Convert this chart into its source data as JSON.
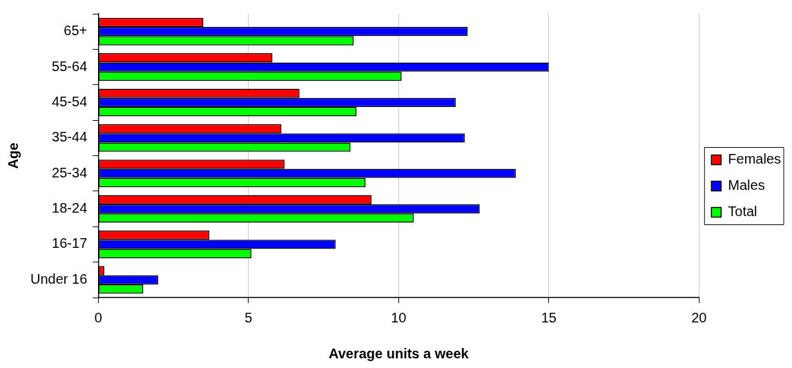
{
  "chart_data": {
    "type": "bar",
    "orientation": "horizontal",
    "xlabel": "Average units a week",
    "ylabel": "Age",
    "categories": [
      "65+",
      "55-64",
      "45-54",
      "35-44",
      "25-34",
      "18-24",
      "16-17",
      "Under 16"
    ],
    "series": [
      {
        "name": "Females",
        "color": "#ff0000",
        "values": [
          3.5,
          5.8,
          6.7,
          6.1,
          6.2,
          9.1,
          3.7,
          0.2
        ]
      },
      {
        "name": "Males",
        "color": "#0000ff",
        "values": [
          12.3,
          15.0,
          11.9,
          12.2,
          13.9,
          12.7,
          7.9,
          2.0
        ]
      },
      {
        "name": "Total",
        "color": "#00ff00",
        "values": [
          8.5,
          10.1,
          8.6,
          8.4,
          8.9,
          10.5,
          5.1,
          1.5
        ]
      }
    ],
    "xlim": [
      0,
      20
    ],
    "xticks": [
      0,
      5,
      10,
      15,
      20
    ],
    "grid": "x",
    "legend": "right"
  }
}
